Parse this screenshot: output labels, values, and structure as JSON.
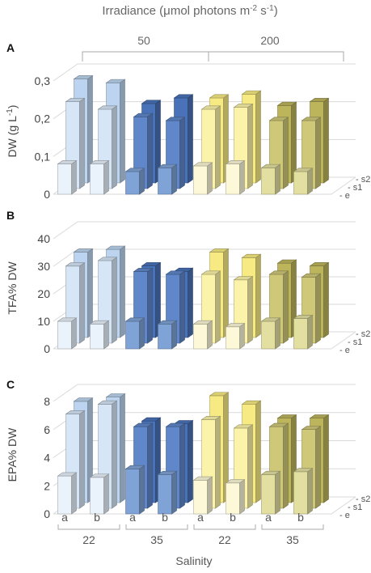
{
  "figure": {
    "title_prefix": "Irradiance (μmol photons m",
    "title_exp1": "-2",
    "title_mid": " s",
    "title_exp2": "-1",
    "title_suffix": ")",
    "irradiance_groups": [
      "50",
      "200"
    ],
    "salinity_label": "Salinity",
    "salinity_groups": [
      "22",
      "35",
      "22",
      "35"
    ],
    "sub_labels": [
      "a",
      "b",
      "a",
      "b",
      "a",
      "b",
      "a",
      "b"
    ],
    "depth_labels": [
      "e",
      "s1",
      "s2"
    ]
  },
  "colors": {
    "light_blue": [
      "#eaf2fb",
      "#d6e6f7",
      "#bcd4ef"
    ],
    "dark_blue": [
      "#7fa3d6",
      "#5f87c9",
      "#4a72b8"
    ],
    "light_yellow": [
      "#fdf9d8",
      "#fbf3a9",
      "#f7ea82"
    ],
    "olive": [
      "#e2dfa0",
      "#cfc878",
      "#bdb55c"
    ]
  },
  "chart_data": [
    {
      "type": "bar",
      "panel": "A",
      "ylabel_main": "DW (g L",
      "ylabel_exp": "-1",
      "ylabel_end": ")",
      "yticks": [
        "0",
        "0,1",
        "0,2",
        "0,3"
      ],
      "ylim": [
        0,
        0.3
      ],
      "categories": [
        "a",
        "b",
        "a",
        "b",
        "a",
        "b",
        "a",
        "b"
      ],
      "series": [
        {
          "name": "e",
          "values": [
            0.08,
            0.08,
            0.06,
            0.07,
            0.075,
            0.08,
            0.07,
            0.06
          ]
        },
        {
          "name": "s1",
          "values": [
            0.23,
            0.21,
            0.19,
            0.18,
            0.21,
            0.215,
            0.18,
            0.18
          ]
        },
        {
          "name": "s2",
          "values": [
            0.275,
            0.265,
            0.21,
            0.225,
            0.225,
            0.235,
            0.205,
            0.215
          ]
        }
      ]
    },
    {
      "type": "bar",
      "panel": "B",
      "ylabel_main": "TFA% DW",
      "yticks": [
        "0",
        "10",
        "20",
        "30",
        "40"
      ],
      "ylim": [
        0,
        40
      ],
      "categories": [
        "a",
        "b",
        "a",
        "b",
        "a",
        "b",
        "a",
        "b"
      ],
      "series": [
        {
          "name": "e",
          "values": [
            10,
            9,
            10,
            9,
            9,
            8,
            10,
            11
          ]
        },
        {
          "name": "s1",
          "values": [
            28,
            30,
            26,
            25,
            25,
            23,
            25,
            24
          ]
        },
        {
          "name": "s2",
          "values": [
            31,
            32,
            26,
            24,
            31,
            29,
            27,
            26
          ]
        }
      ]
    },
    {
      "type": "bar",
      "panel": "C",
      "ylabel_main": "EPA% DW",
      "yticks": [
        "0",
        "2",
        "4",
        "6",
        "8"
      ],
      "ylim": [
        0,
        8
      ],
      "categories": [
        "a",
        "b",
        "a",
        "b",
        "a",
        "b",
        "a",
        "b"
      ],
      "series": [
        {
          "name": "e",
          "values": [
            2.7,
            2.6,
            3.2,
            2.8,
            2.4,
            2.2,
            2.8,
            3.0
          ]
        },
        {
          "name": "s1",
          "values": [
            6.7,
            7.4,
            5.8,
            5.8,
            6.3,
            5.7,
            5.8,
            5.6
          ]
        },
        {
          "name": "s2",
          "values": [
            7.2,
            7.5,
            5.8,
            5.6,
            7.6,
            7.0,
            6.0,
            6.0
          ]
        }
      ]
    }
  ]
}
